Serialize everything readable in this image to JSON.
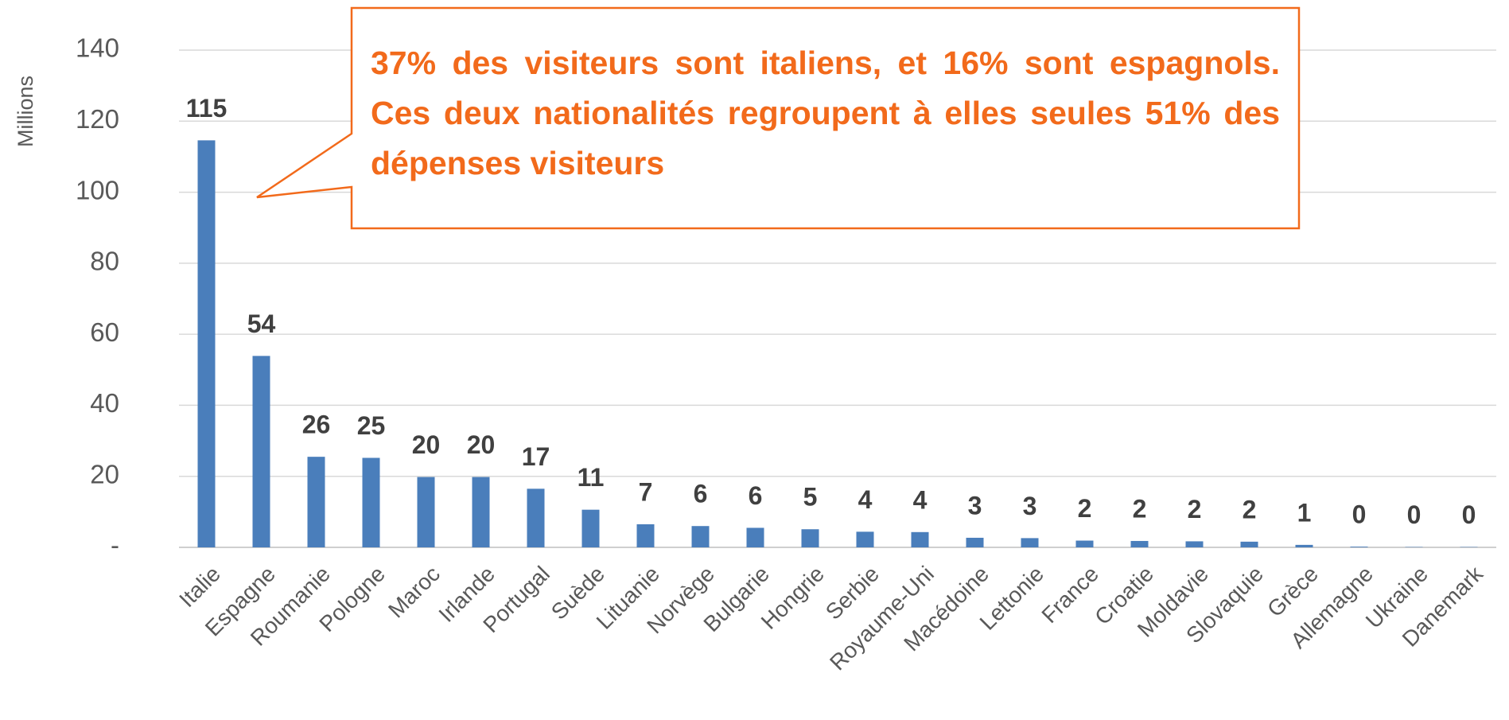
{
  "chart_data": {
    "type": "bar",
    "y_label": "Millions",
    "annotation": "37% des visiteurs sont italiens, et 16% sont espagnols. Ces deux nationalités regroupent à elles seules 51% des dépenses visiteurs",
    "categories": [
      "Italie",
      "Espagne",
      "Roumanie",
      "Pologne",
      "Maroc",
      "Irlande",
      "Portugal",
      "Suède",
      "Lituanie",
      "Norvège",
      "Bulgarie",
      "Hongrie",
      "Serbie",
      "Royaume-Uni",
      "Macédoine",
      "Lettonie",
      "France",
      "Croatie",
      "Moldavie",
      "Slovaquie",
      "Grèce",
      "Allemagne",
      "Ukraine",
      "Danemark"
    ],
    "values": [
      114.6,
      53.9,
      25.5,
      25.2,
      19.8,
      19.8,
      16.5,
      10.6,
      6.5,
      6.0,
      5.5,
      5.1,
      4.4,
      4.3,
      2.7,
      2.6,
      1.9,
      1.8,
      1.7,
      1.6,
      0.7,
      0.2,
      0.1,
      0.1
    ],
    "value_labels": [
      "115",
      "54",
      "26",
      "25",
      "20",
      "20",
      "17",
      "11",
      "7",
      "6",
      "6",
      "5",
      "4",
      "4",
      "3",
      "3",
      "2",
      "2",
      "2",
      "2",
      "1",
      "0",
      "0",
      "0"
    ],
    "color": "#4a7ebb",
    "ylim": [
      0,
      140
    ],
    "yticks": [
      {
        "value": 0,
        "label": "-"
      },
      20,
      40,
      60,
      80,
      100,
      120,
      140
    ],
    "grid": true
  }
}
